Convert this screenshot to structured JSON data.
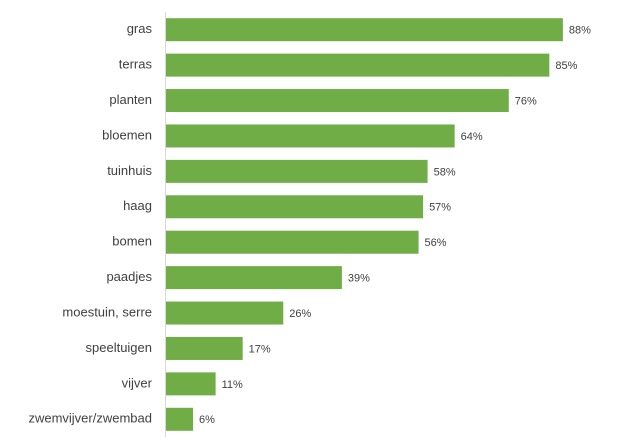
{
  "chart_data": {
    "type": "bar",
    "orientation": "horizontal",
    "categories": [
      "gras",
      "terras",
      "planten",
      "bloemen",
      "tuinhuis",
      "haag",
      "bomen",
      "paadjes",
      "moestuin, serre",
      "speeltuigen",
      "vijver",
      "zwemvijver/zwembad"
    ],
    "values": [
      88,
      85,
      76,
      64,
      58,
      57,
      56,
      39,
      26,
      17,
      11,
      6
    ],
    "value_labels": [
      "88%",
      "85%",
      "76%",
      "64%",
      "58%",
      "57%",
      "56%",
      "39%",
      "26%",
      "17%",
      "11%",
      "6%"
    ],
    "color": "#70ad47"
  }
}
